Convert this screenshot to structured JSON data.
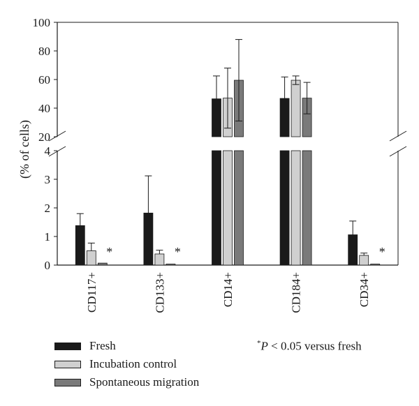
{
  "chart_data": {
    "type": "bar",
    "title": "",
    "xlabel": "",
    "ylabel": "(% of cells)",
    "y_axis": {
      "broken": true,
      "lower_ylim": [
        0,
        4
      ],
      "upper_ylim": [
        20,
        100
      ],
      "lower_ticks": [
        "0",
        "1",
        "2",
        "3",
        "4"
      ],
      "upper_ticks": [
        "20",
        "40",
        "60",
        "80",
        "100"
      ]
    },
    "grid": false,
    "legend_position": "bottom-left",
    "categories": [
      "CD117+",
      "CD133+",
      "CD14+",
      "CD184+",
      "CD34+"
    ],
    "series": [
      {
        "name": "Fresh",
        "color": "#1a1a1a",
        "values": [
          1.38,
          1.82,
          46.5,
          46.8,
          1.06
        ],
        "errors": [
          0.42,
          1.3,
          16.0,
          15.0,
          0.48
        ]
      },
      {
        "name": "Incubation control",
        "color": "#d0d0d0",
        "values": [
          0.5,
          0.39,
          47.0,
          59.5,
          0.34
        ],
        "errors": [
          0.27,
          0.13,
          21.0,
          3.0,
          0.08
        ],
        "error_direction": [
          "up",
          "up",
          "both",
          "both",
          "up"
        ]
      },
      {
        "name": "Spontaneous migration",
        "color": "#7a7a7a",
        "values": [
          0.07,
          0.03,
          59.5,
          47.0,
          0.02
        ],
        "errors": [
          0,
          0,
          28.5,
          11.0,
          0
        ],
        "error_direction": [
          "up",
          "up",
          "both",
          "both",
          "up"
        ]
      }
    ],
    "annotations": [
      {
        "category": "CD117+",
        "text": "*"
      },
      {
        "category": "CD133+",
        "text": "*"
      },
      {
        "category": "CD34+",
        "text": "*"
      }
    ]
  },
  "note": {
    "star": "*",
    "p": "P",
    "text": " < 0.05 versus fresh"
  }
}
